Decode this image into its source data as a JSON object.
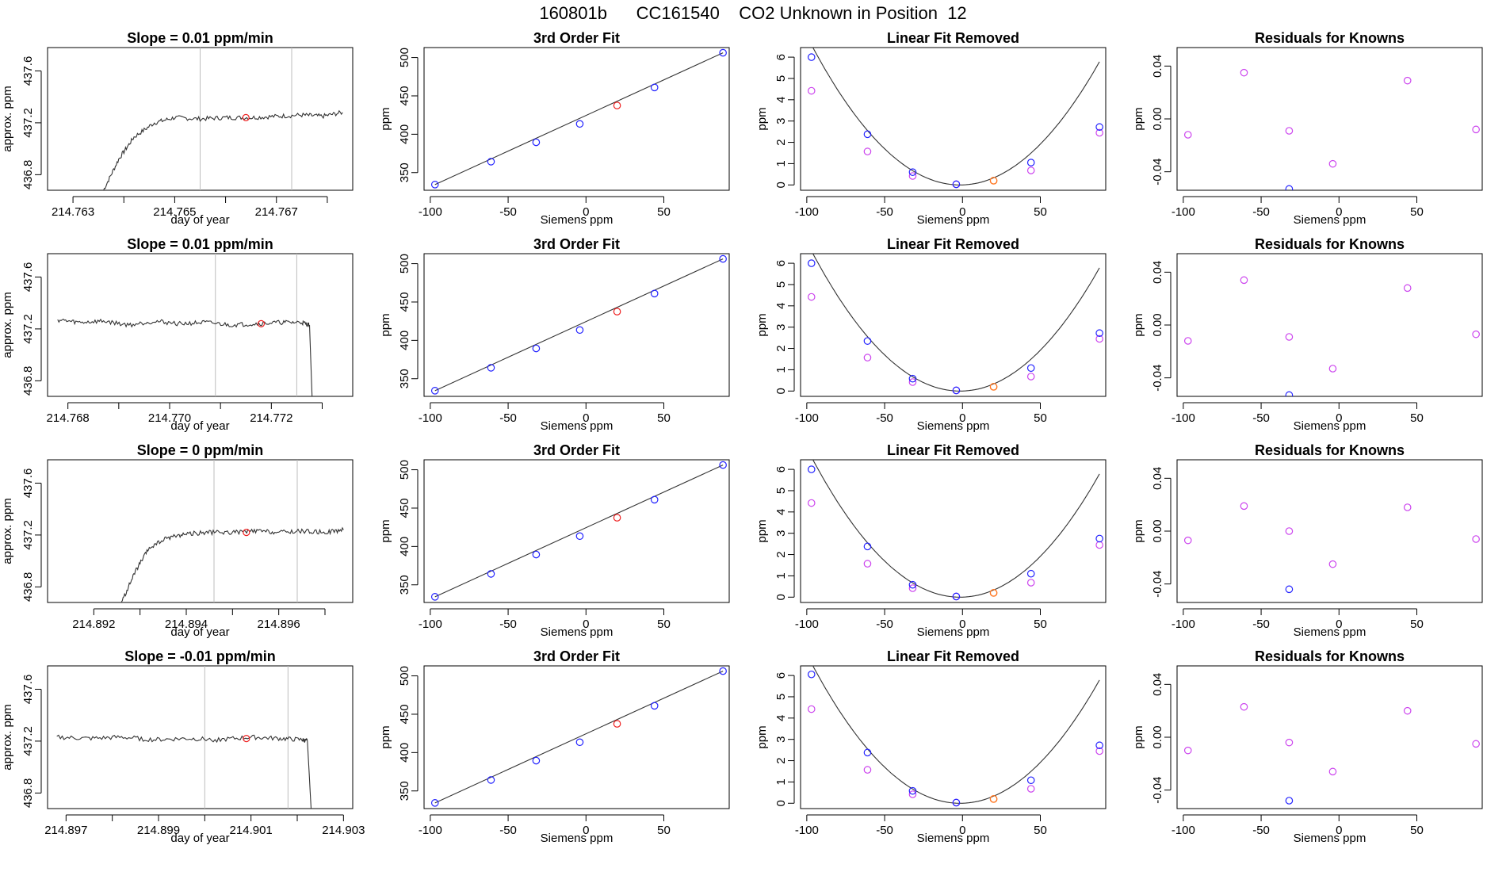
{
  "main_title": "160801b      CC161540    CO2 Unknown in Position  12",
  "colors": {
    "line": "#333333",
    "grid": "#bdbdbd",
    "blue": "#2222ff",
    "red": "#ee2222",
    "magenta": "#cc44ee",
    "orange": "#ff7722"
  },
  "chart_data": [
    {
      "type": "line",
      "row": 0,
      "panel": "timeseries",
      "title": "Slope =  0.01  ppm/min",
      "xlabel": "day of year",
      "ylabel": "approx. ppm",
      "xlim": [
        214.7625,
        214.7685
      ],
      "ylim": [
        436.68,
        437.78
      ],
      "xticks": [
        214.763,
        214.764,
        214.765,
        214.766,
        214.767,
        214.768
      ],
      "xtick_labels": [
        "214.763",
        "",
        "214.765",
        "",
        "214.767",
        ""
      ],
      "yticks": [
        436.8,
        437.2,
        437.6
      ],
      "ytick_labels": [
        "436.8",
        "437.2",
        "437.6"
      ],
      "vlines": [
        214.7655,
        214.7673
      ],
      "trace": [
        [
          214.7636,
          436.68
        ],
        [
          214.7639,
          436.92
        ],
        [
          214.7642,
          437.09
        ],
        [
          214.7646,
          437.2
        ],
        [
          214.765,
          437.24
        ],
        [
          214.7655,
          437.23
        ],
        [
          214.766,
          437.24
        ],
        [
          214.7665,
          437.24
        ],
        [
          214.767,
          437.25
        ],
        [
          214.7675,
          437.26
        ],
        [
          214.7679,
          437.25
        ],
        [
          214.7683,
          437.28
        ]
      ],
      "mark": [
        214.7664,
        437.24
      ]
    },
    {
      "type": "scatter",
      "row": 0,
      "panel": "fit",
      "title": "3rd Order Fit",
      "xlabel": "Siemens ppm",
      "ylabel": "ppm",
      "xlim": [
        -104,
        92
      ],
      "ylim": [
        327,
        513
      ],
      "xticks": [
        -100,
        -50,
        0,
        50
      ],
      "yticks": [
        350,
        400,
        450,
        500
      ],
      "points": [
        [
          -97,
          334.4
        ],
        [
          -61,
          364.3
        ],
        [
          -32,
          389.5
        ],
        [
          -4,
          413.5
        ],
        [
          44,
          461.0
        ],
        [
          88,
          506.2
        ]
      ],
      "unknown": [
        20,
        437.5
      ]
    },
    {
      "type": "scatter",
      "row": 0,
      "panel": "linear_removed",
      "title": "Linear Fit Removed",
      "xlabel": "Siemens ppm",
      "ylabel": "ppm",
      "xlim": [
        -104,
        92
      ],
      "ylim": [
        -0.25,
        6.45
      ],
      "xticks": [
        -100,
        -50,
        0,
        50
      ],
      "yticks": [
        0,
        1,
        2,
        3,
        4,
        5,
        6
      ],
      "curve_coef": [
        0.000722,
        0.0022,
        0
      ],
      "blue": [
        [
          -97,
          6.0
        ],
        [
          -61,
          2.38
        ],
        [
          -32,
          0.6
        ],
        [
          -4,
          0.03
        ],
        [
          44,
          1.05
        ],
        [
          88,
          2.72
        ]
      ],
      "magenta": [
        [
          -97,
          4.42
        ],
        [
          -61,
          1.57
        ],
        [
          -32,
          0.42
        ],
        [
          -4,
          0.03
        ],
        [
          44,
          0.68
        ],
        [
          88,
          2.45
        ]
      ],
      "orange": [
        20,
        0.2
      ]
    },
    {
      "type": "scatter",
      "row": 0,
      "panel": "residuals",
      "title": "Residuals for Knowns",
      "xlabel": "Siemens ppm",
      "ylabel": "ppm",
      "xlim": [
        -104,
        92
      ],
      "ylim": [
        -0.054,
        0.054
      ],
      "xticks": [
        -100,
        -50,
        0,
        50
      ],
      "yticks": [
        -0.04,
        0.0,
        0.04
      ],
      "ytick_labels": [
        "-0.04",
        "0.00",
        "0.04"
      ],
      "magenta": [
        [
          -97,
          -0.012
        ],
        [
          -61,
          0.035
        ],
        [
          -32,
          -0.009
        ],
        [
          -4,
          -0.034
        ],
        [
          44,
          0.029
        ],
        [
          88,
          -0.008
        ]
      ],
      "blue": [
        [
          -32,
          -0.053
        ]
      ]
    },
    {
      "type": "line",
      "row": 1,
      "panel": "timeseries",
      "title": "Slope =  0.01  ppm/min",
      "xlabel": "day of year",
      "ylabel": "approx. ppm",
      "xlim": [
        214.7676,
        214.7736
      ],
      "ylim": [
        436.68,
        437.78
      ],
      "xticks": [
        214.768,
        214.769,
        214.77,
        214.771,
        214.772,
        214.773
      ],
      "xtick_labels": [
        "214.768",
        "",
        "214.770",
        "",
        "214.772",
        ""
      ],
      "yticks": [
        436.8,
        437.2,
        437.6
      ],
      "ytick_labels": [
        "436.8",
        "437.2",
        "437.6"
      ],
      "vlines": [
        214.7709,
        214.7725
      ],
      "trace": [
        [
          214.7678,
          437.27
        ],
        [
          214.7682,
          437.25
        ],
        [
          214.7687,
          437.26
        ],
        [
          214.7692,
          437.23
        ],
        [
          214.7697,
          437.26
        ],
        [
          214.7702,
          437.24
        ],
        [
          214.7707,
          437.25
        ],
        [
          214.7712,
          437.23
        ],
        [
          214.7717,
          437.24
        ],
        [
          214.7722,
          437.25
        ],
        [
          214.7726,
          437.25
        ],
        [
          214.77275,
          437.23
        ],
        [
          214.7728,
          436.68
        ]
      ],
      "mark": [
        214.7718,
        437.24
      ]
    },
    {
      "type": "scatter",
      "row": 1,
      "panel": "fit",
      "title": "3rd Order Fit",
      "xlabel": "Siemens ppm",
      "ylabel": "ppm",
      "xlim": [
        -104,
        92
      ],
      "ylim": [
        327,
        513
      ],
      "xticks": [
        -100,
        -50,
        0,
        50
      ],
      "yticks": [
        350,
        400,
        450,
        500
      ],
      "points": [
        [
          -97,
          334.4
        ],
        [
          -61,
          364.3
        ],
        [
          -32,
          389.5
        ],
        [
          -4,
          413.5
        ],
        [
          44,
          461.0
        ],
        [
          88,
          506.2
        ]
      ],
      "unknown": [
        20,
        437.5
      ]
    },
    {
      "type": "scatter",
      "row": 1,
      "panel": "linear_removed",
      "title": "Linear Fit Removed",
      "xlabel": "Siemens ppm",
      "ylabel": "ppm",
      "xlim": [
        -104,
        92
      ],
      "ylim": [
        -0.25,
        6.45
      ],
      "xticks": [
        -100,
        -50,
        0,
        50
      ],
      "yticks": [
        0,
        1,
        2,
        3,
        4,
        5,
        6
      ],
      "curve_coef": [
        0.000722,
        0.0022,
        0
      ],
      "blue": [
        [
          -97,
          6.0
        ],
        [
          -61,
          2.35
        ],
        [
          -32,
          0.58
        ],
        [
          -4,
          0.03
        ],
        [
          44,
          1.08
        ],
        [
          88,
          2.72
        ]
      ],
      "magenta": [
        [
          -97,
          4.42
        ],
        [
          -61,
          1.57
        ],
        [
          -32,
          0.42
        ],
        [
          -4,
          0.03
        ],
        [
          44,
          0.68
        ],
        [
          88,
          2.45
        ]
      ],
      "orange": [
        20,
        0.2
      ]
    },
    {
      "type": "scatter",
      "row": 1,
      "panel": "residuals",
      "title": "Residuals for Knowns",
      "xlabel": "Siemens ppm",
      "ylabel": "ppm",
      "xlim": [
        -104,
        92
      ],
      "ylim": [
        -0.054,
        0.054
      ],
      "xticks": [
        -100,
        -50,
        0,
        50
      ],
      "yticks": [
        -0.04,
        0.0,
        0.04
      ],
      "ytick_labels": [
        "-0.04",
        "0.00",
        "0.04"
      ],
      "magenta": [
        [
          -97,
          -0.012
        ],
        [
          -61,
          0.034
        ],
        [
          -32,
          -0.009
        ],
        [
          -4,
          -0.033
        ],
        [
          44,
          0.028
        ],
        [
          88,
          -0.007
        ]
      ],
      "blue": [
        [
          -32,
          -0.053
        ]
      ]
    },
    {
      "type": "line",
      "row": 2,
      "panel": "timeseries",
      "title": "Slope =  0  ppm/min",
      "xlabel": "day of year",
      "ylabel": "approx. ppm",
      "xlim": [
        214.891,
        214.8976
      ],
      "ylim": [
        436.68,
        437.78
      ],
      "xticks": [
        214.892,
        214.893,
        214.894,
        214.895,
        214.896,
        214.897
      ],
      "xtick_labels": [
        "214.892",
        "",
        "214.894",
        "",
        "214.896",
        ""
      ],
      "yticks": [
        436.8,
        437.2,
        437.6
      ],
      "ytick_labels": [
        "436.8",
        "437.2",
        "437.6"
      ],
      "vlines": [
        214.8946,
        214.8964
      ],
      "trace": [
        [
          214.8926,
          436.68
        ],
        [
          214.8929,
          436.92
        ],
        [
          214.8932,
          437.1
        ],
        [
          214.8936,
          437.18
        ],
        [
          214.894,
          437.21
        ],
        [
          214.8945,
          437.22
        ],
        [
          214.895,
          437.22
        ],
        [
          214.8955,
          437.23
        ],
        [
          214.896,
          437.22
        ],
        [
          214.8965,
          437.23
        ],
        [
          214.897,
          437.22
        ],
        [
          214.8974,
          437.24
        ]
      ],
      "mark": [
        214.8953,
        437.22
      ]
    },
    {
      "type": "scatter",
      "row": 2,
      "panel": "fit",
      "title": "3rd Order Fit",
      "xlabel": "Siemens ppm",
      "ylabel": "ppm",
      "xlim": [
        -104,
        92
      ],
      "ylim": [
        327,
        513
      ],
      "xticks": [
        -100,
        -50,
        0,
        50
      ],
      "yticks": [
        350,
        400,
        450,
        500
      ],
      "points": [
        [
          -97,
          334.4
        ],
        [
          -61,
          364.3
        ],
        [
          -32,
          389.5
        ],
        [
          -4,
          413.5
        ],
        [
          44,
          461.0
        ],
        [
          88,
          506.2
        ]
      ],
      "unknown": [
        20,
        437.5
      ]
    },
    {
      "type": "scatter",
      "row": 2,
      "panel": "linear_removed",
      "title": "Linear Fit Removed",
      "xlabel": "Siemens ppm",
      "ylabel": "ppm",
      "xlim": [
        -104,
        92
      ],
      "ylim": [
        -0.25,
        6.45
      ],
      "xticks": [
        -100,
        -50,
        0,
        50
      ],
      "yticks": [
        0,
        1,
        2,
        3,
        4,
        5,
        6
      ],
      "curve_coef": [
        0.000722,
        0.0022,
        0
      ],
      "blue": [
        [
          -97,
          6.0
        ],
        [
          -61,
          2.38
        ],
        [
          -32,
          0.58
        ],
        [
          -4,
          0.03
        ],
        [
          44,
          1.1
        ],
        [
          88,
          2.75
        ]
      ],
      "magenta": [
        [
          -97,
          4.42
        ],
        [
          -61,
          1.57
        ],
        [
          -32,
          0.42
        ],
        [
          -4,
          0.03
        ],
        [
          44,
          0.68
        ],
        [
          88,
          2.45
        ]
      ],
      "orange": [
        20,
        0.2
      ]
    },
    {
      "type": "scatter",
      "row": 2,
      "panel": "residuals",
      "title": "Residuals for Knowns",
      "xlabel": "Siemens ppm",
      "ylabel": "ppm",
      "xlim": [
        -104,
        92
      ],
      "ylim": [
        -0.054,
        0.054
      ],
      "xticks": [
        -100,
        -50,
        0,
        50
      ],
      "yticks": [
        -0.04,
        0.0,
        0.04
      ],
      "ytick_labels": [
        "-0.04",
        "0.00",
        "0.04"
      ],
      "magenta": [
        [
          -97,
          -0.007
        ],
        [
          -61,
          0.019
        ],
        [
          -32,
          0.0
        ],
        [
          -4,
          -0.025
        ],
        [
          44,
          0.018
        ],
        [
          88,
          -0.006
        ]
      ],
      "blue": [
        [
          -32,
          -0.044
        ]
      ]
    },
    {
      "type": "line",
      "row": 3,
      "panel": "timeseries",
      "title": "Slope =  -0.01  ppm/min",
      "xlabel": "day of year",
      "ylabel": "approx. ppm",
      "xlim": [
        214.8966,
        214.9032
      ],
      "ylim": [
        436.68,
        437.78
      ],
      "xticks": [
        214.897,
        214.898,
        214.899,
        214.9,
        214.901,
        214.902,
        214.903
      ],
      "xtick_labels": [
        "214.897",
        "",
        "214.899",
        "",
        "214.901",
        "",
        "214.903"
      ],
      "yticks": [
        436.8,
        437.2,
        437.6
      ],
      "ytick_labels": [
        "436.8",
        "437.2",
        "437.6"
      ],
      "vlines": [
        214.9,
        214.9018
      ],
      "trace": [
        [
          214.8968,
          437.23
        ],
        [
          214.8975,
          437.22
        ],
        [
          214.8982,
          437.23
        ],
        [
          214.8989,
          437.21
        ],
        [
          214.8996,
          437.22
        ],
        [
          214.9003,
          437.21
        ],
        [
          214.901,
          437.23
        ],
        [
          214.9016,
          437.22
        ],
        [
          214.9021,
          437.21
        ],
        [
          214.90222,
          437.2
        ],
        [
          214.9023,
          436.68
        ]
      ],
      "mark": [
        214.9009,
        437.22
      ]
    },
    {
      "type": "scatter",
      "row": 3,
      "panel": "fit",
      "title": "3rd Order Fit",
      "xlabel": "Siemens ppm",
      "ylabel": "ppm",
      "xlim": [
        -104,
        92
      ],
      "ylim": [
        327,
        513
      ],
      "xticks": [
        -100,
        -50,
        0,
        50
      ],
      "yticks": [
        350,
        400,
        450,
        500
      ],
      "points": [
        [
          -97,
          334.4
        ],
        [
          -61,
          364.3
        ],
        [
          -32,
          389.5
        ],
        [
          -4,
          413.5
        ],
        [
          44,
          461.0
        ],
        [
          88,
          506.2
        ]
      ],
      "unknown": [
        20,
        437.5
      ]
    },
    {
      "type": "scatter",
      "row": 3,
      "panel": "linear_removed",
      "title": "Linear Fit Removed",
      "xlabel": "Siemens ppm",
      "ylabel": "ppm",
      "xlim": [
        -104,
        92
      ],
      "ylim": [
        -0.25,
        6.45
      ],
      "xticks": [
        -100,
        -50,
        0,
        50
      ],
      "yticks": [
        0,
        1,
        2,
        3,
        4,
        5,
        6
      ],
      "curve_coef": [
        0.000722,
        0.0022,
        0
      ],
      "blue": [
        [
          -97,
          6.05
        ],
        [
          -61,
          2.38
        ],
        [
          -32,
          0.58
        ],
        [
          -4,
          0.03
        ],
        [
          44,
          1.08
        ],
        [
          88,
          2.72
        ]
      ],
      "magenta": [
        [
          -97,
          4.42
        ],
        [
          -61,
          1.57
        ],
        [
          -32,
          0.42
        ],
        [
          -4,
          0.03
        ],
        [
          44,
          0.68
        ],
        [
          88,
          2.45
        ]
      ],
      "orange": [
        20,
        0.2
      ]
    },
    {
      "type": "scatter",
      "row": 3,
      "panel": "residuals",
      "title": "Residuals for Knowns",
      "xlabel": "Siemens ppm",
      "ylabel": "ppm",
      "xlim": [
        -104,
        92
      ],
      "ylim": [
        -0.054,
        0.054
      ],
      "xticks": [
        -100,
        -50,
        0,
        50
      ],
      "yticks": [
        -0.04,
        0.0,
        0.04
      ],
      "ytick_labels": [
        "-0.04",
        "0.00",
        "0.04"
      ],
      "magenta": [
        [
          -97,
          -0.01
        ],
        [
          -61,
          0.023
        ],
        [
          -32,
          -0.004
        ],
        [
          -4,
          -0.026
        ],
        [
          44,
          0.02
        ],
        [
          88,
          -0.005
        ]
      ],
      "blue": [
        [
          -32,
          -0.048
        ]
      ]
    }
  ]
}
